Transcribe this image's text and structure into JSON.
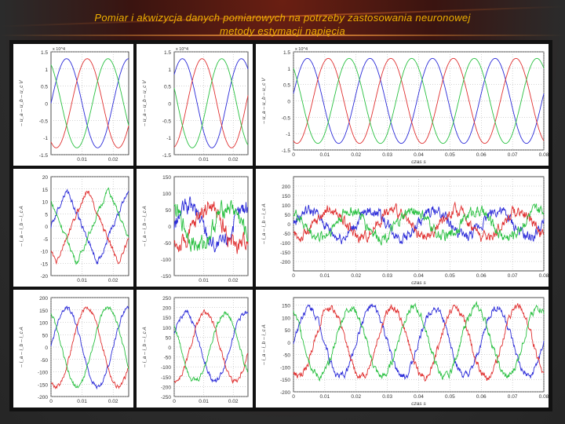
{
  "title_line1": "Pomiar i akwizycja danych pomiarowych na potrzeby zastosowania neuronowej",
  "title_line2": "metody estymacji napięcia",
  "colors": {
    "title": "#f0b000",
    "series": [
      "#2a2ad8",
      "#e03030",
      "#28c040"
    ]
  },
  "chart_data": [
    {
      "id": "r1c1",
      "type": "line",
      "ylabel": "– u_a  – u_b  – u_c  V",
      "multiplier": "x 10^4",
      "yticks": [
        -1.5,
        -1,
        -0.5,
        0,
        0.5,
        1,
        1.5
      ],
      "ylim": [
        -1.5,
        1.5
      ],
      "xticks": [
        0.01,
        0.02
      ],
      "xticklabels": [
        "0.01",
        "0.02"
      ],
      "xlim": [
        0,
        0.025
      ],
      "series": [
        {
          "color": "blue",
          "amplitude": 1.3,
          "frequency_hz": 50,
          "phase_deg": 0,
          "noise": 0
        },
        {
          "color": "red",
          "amplitude": 1.3,
          "frequency_hz": 50,
          "phase_deg": -120,
          "noise": 0
        },
        {
          "color": "green",
          "amplitude": 1.3,
          "frequency_hz": 50,
          "phase_deg": 120,
          "noise": 0
        }
      ]
    },
    {
      "id": "r1c2",
      "type": "line",
      "ylabel": "– u_a  – u_b  – u_c  V",
      "multiplier": "x 10^4",
      "yticks": [
        -1.5,
        -1,
        -0.5,
        0,
        0.5,
        1,
        1.5
      ],
      "ylim": [
        -1.5,
        1.5
      ],
      "xticks": [
        0.01,
        0.02
      ],
      "xticklabels": [
        "0.01",
        "0.02"
      ],
      "xlim": [
        0,
        0.025
      ],
      "series": [
        {
          "color": "blue",
          "amplitude": 1.3,
          "frequency_hz": 50,
          "phase_deg": 40,
          "noise": 0
        },
        {
          "color": "red",
          "amplitude": 1.3,
          "frequency_hz": 50,
          "phase_deg": -80,
          "noise": 0
        },
        {
          "color": "green",
          "amplitude": 1.3,
          "frequency_hz": 50,
          "phase_deg": 160,
          "noise": 0
        }
      ]
    },
    {
      "id": "r1c3",
      "type": "line",
      "ylabel": "– u_a  – u_b  – u_c  V",
      "multiplier": "x 10^4",
      "xlabel": "czas  s",
      "yticks": [
        -1.5,
        -1,
        -0.5,
        0,
        0.5,
        1,
        1.5
      ],
      "ylim": [
        -1.5,
        1.5
      ],
      "xticks": [
        0,
        0.01,
        0.02,
        0.03,
        0.04,
        0.05,
        0.06,
        0.07,
        0.08
      ],
      "xticklabels": [
        "0",
        "0.01",
        "0.02",
        "0.03",
        "0.04",
        "0.05",
        "0.06",
        "0.07",
        "0.08"
      ],
      "xlim": [
        0,
        0.08
      ],
      "series": [
        {
          "color": "blue",
          "amplitude": 1.3,
          "frequency_hz": 50,
          "phase_deg": 10,
          "noise": 0
        },
        {
          "color": "red",
          "amplitude": 1.3,
          "frequency_hz": 50,
          "phase_deg": -110,
          "noise": 0
        },
        {
          "color": "green",
          "amplitude": 1.3,
          "frequency_hz": 50,
          "phase_deg": 130,
          "noise": 0
        }
      ]
    },
    {
      "id": "r2c1",
      "type": "line",
      "ylabel": "– i_a  – i_b  – i_c  A",
      "yticks": [
        -20,
        -15,
        -10,
        -5,
        0,
        5,
        10,
        15,
        20
      ],
      "ylim": [
        -20,
        20
      ],
      "xticks": [
        0.01,
        0.02
      ],
      "xticklabels": [
        "0.01",
        "0.02"
      ],
      "xlim": [
        0,
        0.025
      ],
      "series": [
        {
          "color": "blue",
          "amplitude": 15,
          "frequency_hz": 50,
          "phase_deg": 0,
          "noise": 1.5,
          "shape": "triangle"
        },
        {
          "color": "red",
          "amplitude": 15,
          "frequency_hz": 50,
          "phase_deg": -120,
          "noise": 1.5,
          "shape": "triangle"
        },
        {
          "color": "green",
          "amplitude": 15,
          "frequency_hz": 50,
          "phase_deg": 120,
          "noise": 1.5,
          "shape": "triangle"
        }
      ]
    },
    {
      "id": "r2c2",
      "type": "line",
      "ylabel": "– i_a  – i_b  – i_c  A",
      "yticks": [
        -150,
        -100,
        -50,
        0,
        50,
        100,
        150
      ],
      "ylim": [
        -150,
        150
      ],
      "xticks": [
        0.01,
        0.02
      ],
      "xticklabels": [
        "0.01",
        "0.02"
      ],
      "xlim": [
        0,
        0.025
      ],
      "series": [
        {
          "color": "blue",
          "amplitude": 60,
          "frequency_hz": 50,
          "phase_deg": 0,
          "noise": 35
        },
        {
          "color": "red",
          "amplitude": 60,
          "frequency_hz": 50,
          "phase_deg": -120,
          "noise": 35
        },
        {
          "color": "green",
          "amplitude": 60,
          "frequency_hz": 50,
          "phase_deg": 120,
          "noise": 35
        }
      ]
    },
    {
      "id": "r2c3",
      "type": "line",
      "ylabel": "– i_a  – i_b  – i_c  A",
      "xlabel": "czas  s",
      "yticks": [
        -200,
        -150,
        -100,
        -50,
        0,
        50,
        100,
        150,
        200
      ],
      "ylim": [
        -250,
        250
      ],
      "xticks": [
        0,
        0.01,
        0.02,
        0.03,
        0.04,
        0.05,
        0.06,
        0.07,
        0.08
      ],
      "xticklabels": [
        "0",
        "0.01",
        "0.02",
        "0.03",
        "0.04",
        "0.05",
        "0.06",
        "0.07",
        "0.08"
      ],
      "xlim": [
        0,
        0.08
      ],
      "series": [
        {
          "color": "blue",
          "amplitude": 70,
          "frequency_hz": 50,
          "phase_deg": 0,
          "noise": 40
        },
        {
          "color": "red",
          "amplitude": 70,
          "frequency_hz": 50,
          "phase_deg": -120,
          "noise": 40
        },
        {
          "color": "green",
          "amplitude": 70,
          "frequency_hz": 50,
          "phase_deg": 120,
          "noise": 40
        }
      ]
    },
    {
      "id": "r3c1",
      "type": "line",
      "ylabel": "– i_a  – i_b  – i_c  A",
      "yticks": [
        -200,
        -150,
        -100,
        -50,
        0,
        50,
        100,
        150,
        200
      ],
      "ylim": [
        -200,
        200
      ],
      "xticks": [
        0,
        0.01,
        0.02
      ],
      "xticklabels": [
        "0",
        "0.01",
        "0.02"
      ],
      "xlim": [
        0,
        0.025
      ],
      "series": [
        {
          "color": "blue",
          "amplitude": 160,
          "frequency_hz": 50,
          "phase_deg": 0,
          "noise": 12
        },
        {
          "color": "red",
          "amplitude": 160,
          "frequency_hz": 50,
          "phase_deg": -120,
          "noise": 12
        },
        {
          "color": "green",
          "amplitude": 160,
          "frequency_hz": 50,
          "phase_deg": 120,
          "noise": 12
        }
      ]
    },
    {
      "id": "r3c2",
      "type": "line",
      "ylabel": "– i_a  – i_b  – i_c  A",
      "yticks": [
        -250,
        -200,
        -150,
        -100,
        -50,
        0,
        50,
        100,
        150,
        200,
        250
      ],
      "ylim": [
        -250,
        250
      ],
      "xticks": [
        0,
        0.01,
        0.02
      ],
      "xticklabels": [
        "0",
        "0.01",
        "0.02"
      ],
      "xlim": [
        0,
        0.025
      ],
      "series": [
        {
          "color": "blue",
          "amplitude": 170,
          "frequency_hz": 50,
          "phase_deg": 20,
          "noise": 18
        },
        {
          "color": "red",
          "amplitude": 170,
          "frequency_hz": 50,
          "phase_deg": -100,
          "noise": 18
        },
        {
          "color": "green",
          "amplitude": 170,
          "frequency_hz": 50,
          "phase_deg": 140,
          "noise": 18
        }
      ]
    },
    {
      "id": "r3c3",
      "type": "line",
      "ylabel": "– i_a  – i_b  – i_c  A",
      "xlabel": "czas  s",
      "yticks": [
        -200,
        -150,
        -100,
        -50,
        0,
        50,
        100,
        150
      ],
      "ylim": [
        -200,
        180
      ],
      "xticks": [
        0,
        0.01,
        0.02,
        0.03,
        0.04,
        0.05,
        0.06,
        0.07,
        0.08
      ],
      "xticklabels": [
        "0",
        "0.01",
        "0.02",
        "0.03",
        "0.04",
        "0.05",
        "0.06",
        "0.07",
        "0.08"
      ],
      "xlim": [
        0,
        0.08
      ],
      "series": [
        {
          "color": "blue",
          "amplitude": 140,
          "frequency_hz": 50,
          "phase_deg": 0,
          "noise": 20
        },
        {
          "color": "red",
          "amplitude": 140,
          "frequency_hz": 50,
          "phase_deg": -120,
          "noise": 20
        },
        {
          "color": "green",
          "amplitude": 140,
          "frequency_hz": 50,
          "phase_deg": 120,
          "noise": 20
        }
      ]
    }
  ]
}
